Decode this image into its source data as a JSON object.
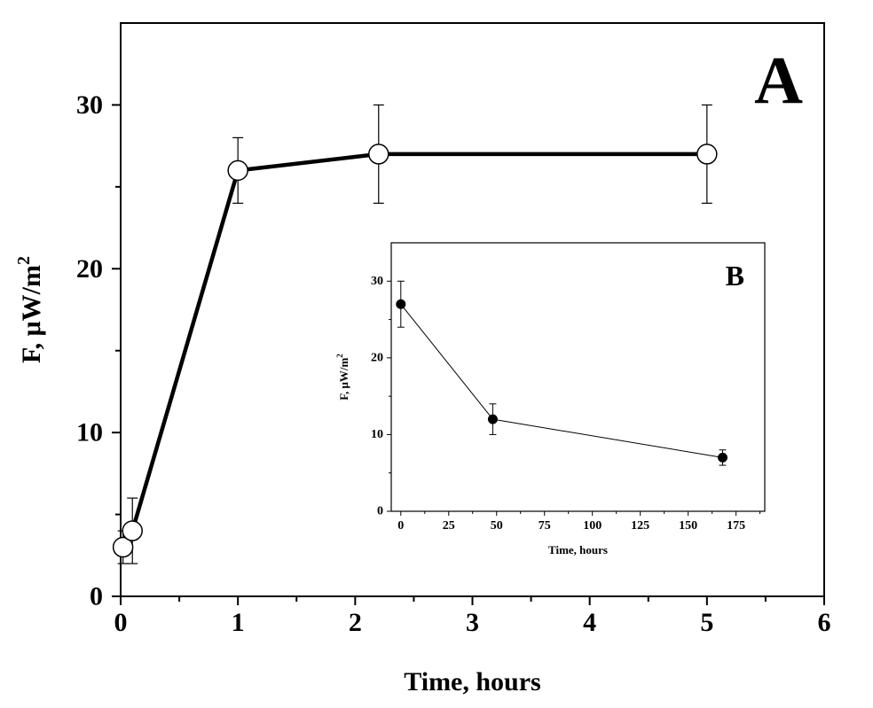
{
  "chart_data": [
    {
      "type": "line",
      "panel_label": "A",
      "xlabel": "Time, hours",
      "ylabel_main": "F, μW/m",
      "ylabel_sup": "2",
      "xlim": [
        0,
        6
      ],
      "ylim": [
        0,
        35
      ],
      "x_ticks": [
        0,
        1,
        2,
        3,
        4,
        5,
        6
      ],
      "y_ticks": [
        0,
        10,
        20,
        30
      ],
      "marker": "open-circle",
      "series": [
        {
          "x": [
            0.02,
            0.1,
            1.0,
            2.2,
            5.0
          ],
          "y": [
            3,
            4,
            26,
            27,
            27
          ],
          "error": [
            1,
            2,
            2,
            3,
            3
          ]
        }
      ]
    },
    {
      "type": "line",
      "panel_label": "B",
      "xlabel": "Time, hours",
      "ylabel_main": "F, μW/m",
      "ylabel_sup": "2",
      "xlim": [
        -5,
        190
      ],
      "ylim": [
        0,
        35
      ],
      "x_ticks": [
        0,
        25,
        50,
        75,
        100,
        125,
        150,
        175
      ],
      "y_ticks": [
        0,
        10,
        20,
        30
      ],
      "marker": "filled-circle",
      "series": [
        {
          "x": [
            0,
            48,
            168
          ],
          "y": [
            27,
            12,
            7
          ],
          "error": [
            3,
            2,
            1
          ]
        }
      ]
    }
  ]
}
